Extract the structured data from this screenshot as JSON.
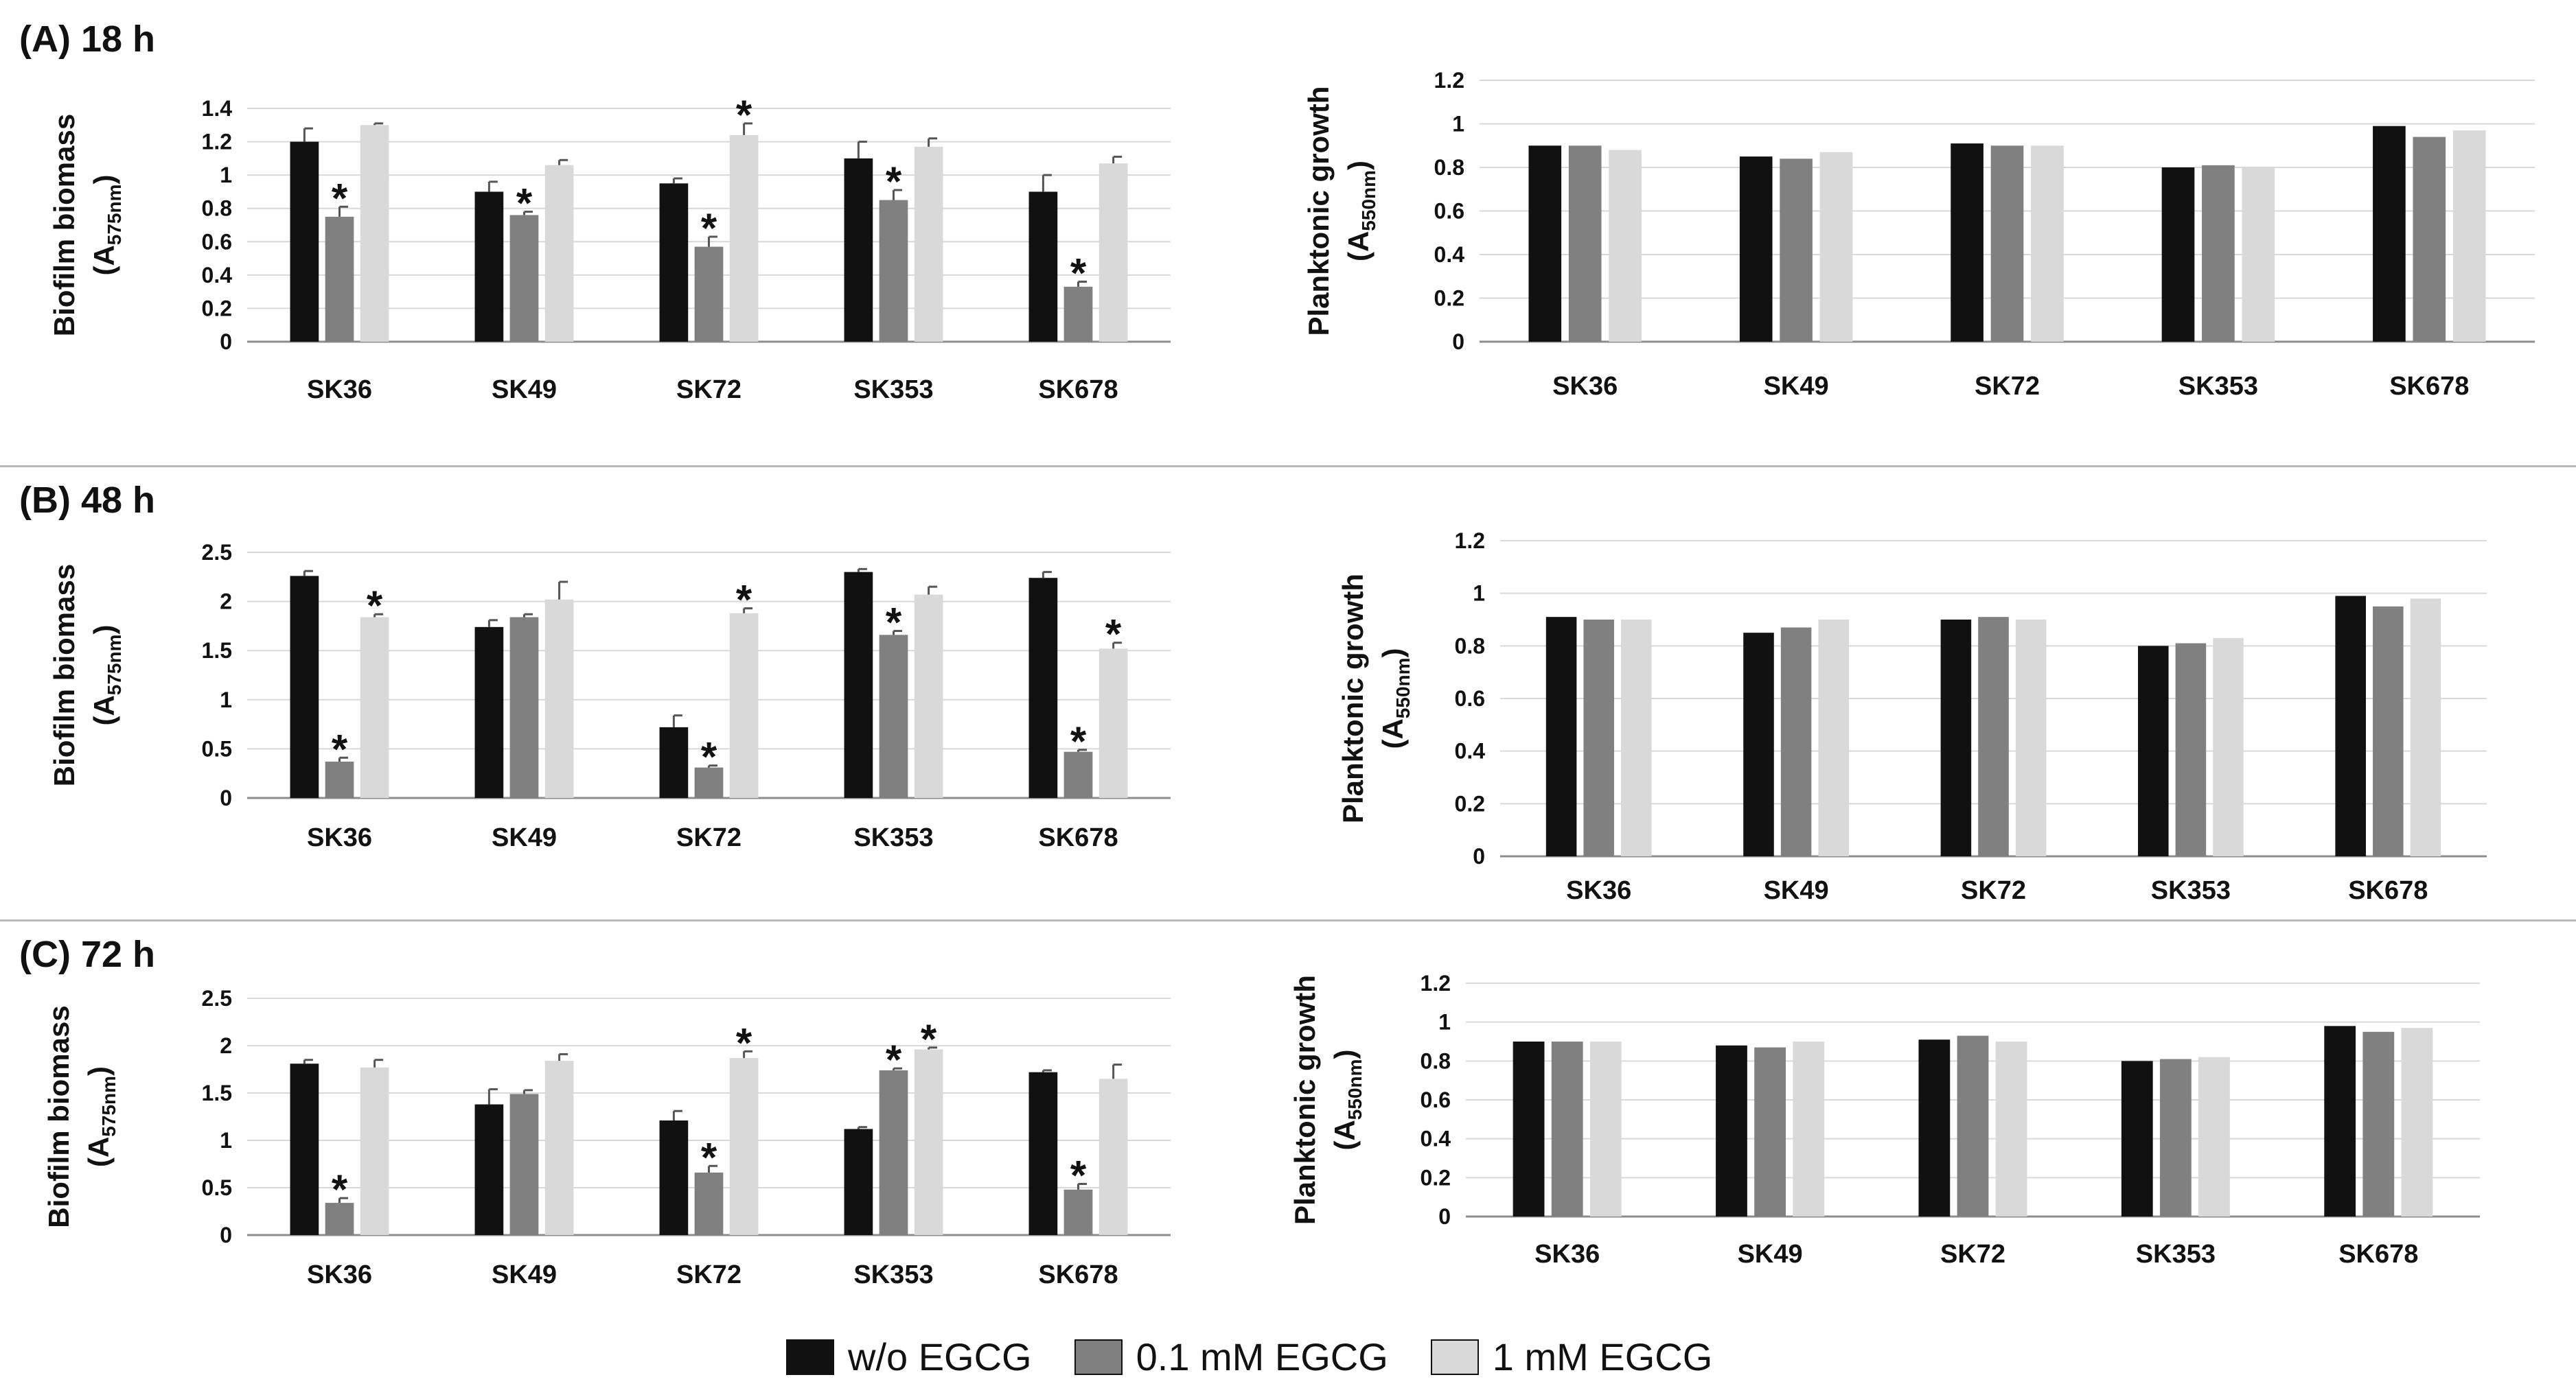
{
  "panels": [
    {
      "label": "(A) 18 h"
    },
    {
      "label": "(B) 48 h"
    },
    {
      "label": "(C) 72 h"
    }
  ],
  "legend": [
    {
      "label": "w/o EGCG",
      "color": "#111111"
    },
    {
      "label": "0.1 mM EGCG",
      "color": "#808080"
    },
    {
      "label": "1 mM EGCG",
      "color": "#d9d9d9"
    }
  ],
  "chart_data": [
    {
      "id": "A-biofilm",
      "panel": "(A) 18 h",
      "type": "bar",
      "ylabel_main": "Biofilm biomass",
      "ylabel_sub": "A",
      "ylabel_subscript": "575nm",
      "categories": [
        "SK36",
        "SK49",
        "SK72",
        "SK353",
        "SK678"
      ],
      "ylim": [
        0,
        1.4
      ],
      "yticks": [
        0,
        0.2,
        0.4,
        0.6,
        0.8,
        1,
        1.2,
        1.4
      ],
      "yticklabels": [
        "0",
        "0.2",
        "0.4",
        "0.6",
        "0.8",
        "1",
        "1.2",
        "1.4"
      ],
      "series": [
        {
          "name": "w/o EGCG",
          "values": [
            1.2,
            0.9,
            0.95,
            1.1,
            0.9
          ],
          "errors": [
            0.08,
            0.06,
            0.03,
            0.1,
            0.1
          ],
          "stars": [
            false,
            false,
            false,
            false,
            false
          ]
        },
        {
          "name": "0.1 mM EGCG",
          "values": [
            0.75,
            0.76,
            0.57,
            0.85,
            0.33
          ],
          "errors": [
            0.06,
            0.02,
            0.06,
            0.06,
            0.03
          ],
          "stars": [
            true,
            true,
            true,
            true,
            true
          ]
        },
        {
          "name": "1 mM EGCG",
          "values": [
            1.3,
            1.06,
            1.24,
            1.17,
            1.07
          ],
          "errors": [
            0.01,
            0.03,
            0.07,
            0.05,
            0.04
          ],
          "stars": [
            false,
            false,
            true,
            false,
            false
          ]
        }
      ],
      "star_symbol": "*"
    },
    {
      "id": "A-planktonic",
      "panel": "(A) 18 h",
      "type": "bar",
      "ylabel_main": "Planktonic growth",
      "ylabel_sub": "A",
      "ylabel_subscript": "550nm",
      "categories": [
        "SK36",
        "SK49",
        "SK72",
        "SK353",
        "SK678"
      ],
      "ylim": [
        0,
        1.2
      ],
      "yticks": [
        0,
        0.2,
        0.4,
        0.6,
        0.8,
        1,
        1.2
      ],
      "yticklabels": [
        "0",
        "0.2",
        "0.4",
        "0.6",
        "0.8",
        "1",
        "1.2"
      ],
      "series": [
        {
          "name": "w/o EGCG",
          "values": [
            0.9,
            0.85,
            0.91,
            0.8,
            0.99
          ]
        },
        {
          "name": "0.1 mM EGCG",
          "values": [
            0.9,
            0.84,
            0.9,
            0.81,
            0.94
          ]
        },
        {
          "name": "1 mM EGCG",
          "values": [
            0.88,
            0.87,
            0.9,
            0.8,
            0.97
          ]
        }
      ]
    },
    {
      "id": "B-biofilm",
      "panel": "(B) 48 h",
      "type": "bar",
      "ylabel_main": "Biofilm biomass",
      "ylabel_sub": "A",
      "ylabel_subscript": "575nm",
      "categories": [
        "SK36",
        "SK49",
        "SK72",
        "SK353",
        "SK678"
      ],
      "ylim": [
        0,
        2.5
      ],
      "yticks": [
        0,
        0.5,
        1,
        1.5,
        2,
        2.5
      ],
      "yticklabels": [
        "0",
        "0.5",
        "1",
        "1.5",
        "2",
        "2.5"
      ],
      "series": [
        {
          "name": "w/o EGCG",
          "values": [
            2.26,
            1.74,
            0.72,
            2.3,
            2.24
          ],
          "errors": [
            0.05,
            0.07,
            0.12,
            0.03,
            0.06
          ],
          "stars": [
            false,
            false,
            false,
            false,
            false
          ]
        },
        {
          "name": "0.1 mM EGCG",
          "values": [
            0.37,
            1.84,
            0.31,
            1.66,
            0.47
          ],
          "errors": [
            0.04,
            0.03,
            0.02,
            0.04,
            0.02
          ],
          "stars": [
            true,
            false,
            true,
            true,
            true
          ]
        },
        {
          "name": "1 mM EGCG",
          "values": [
            1.84,
            2.02,
            1.88,
            2.07,
            1.52
          ],
          "errors": [
            0.03,
            0.18,
            0.05,
            0.08,
            0.06
          ],
          "stars": [
            true,
            false,
            true,
            false,
            true
          ]
        }
      ],
      "star_symbol": "*"
    },
    {
      "id": "B-planktonic",
      "panel": "(B) 48 h",
      "type": "bar",
      "ylabel_main": "Planktonic growth",
      "ylabel_sub": "A",
      "ylabel_subscript": "550nm",
      "categories": [
        "SK36",
        "SK49",
        "SK72",
        "SK353",
        "SK678"
      ],
      "ylim": [
        0,
        1.2
      ],
      "yticks": [
        0,
        0.2,
        0.4,
        0.6,
        0.8,
        1,
        1.2
      ],
      "yticklabels": [
        "0",
        "0.2",
        "0.4",
        "0.6",
        "0.8",
        "1",
        "1.2"
      ],
      "series": [
        {
          "name": "w/o EGCG",
          "values": [
            0.91,
            0.85,
            0.9,
            0.8,
            0.99
          ]
        },
        {
          "name": "0.1 mM EGCG",
          "values": [
            0.9,
            0.87,
            0.91,
            0.81,
            0.95
          ]
        },
        {
          "name": "1 mM EGCG",
          "values": [
            0.9,
            0.9,
            0.9,
            0.83,
            0.98
          ]
        }
      ]
    },
    {
      "id": "C-biofilm",
      "panel": "(C) 72 h",
      "type": "bar",
      "ylabel_main": "Biofilm biomass",
      "ylabel_sub": "A",
      "ylabel_subscript": "575nm",
      "categories": [
        "SK36",
        "SK49",
        "SK72",
        "SK353",
        "SK678"
      ],
      "ylim": [
        0,
        2.5
      ],
      "yticks": [
        0,
        0.5,
        1,
        1.5,
        2,
        2.5
      ],
      "yticklabels": [
        "0",
        "0.5",
        "1",
        "1.5",
        "2",
        "2.5"
      ],
      "series": [
        {
          "name": "w/o EGCG",
          "values": [
            1.81,
            1.38,
            1.21,
            1.12,
            1.72
          ],
          "errors": [
            0.04,
            0.16,
            0.1,
            0.02,
            0.02
          ],
          "stars": [
            false,
            false,
            false,
            false,
            false
          ]
        },
        {
          "name": "0.1 mM EGCG",
          "values": [
            0.34,
            1.49,
            0.66,
            1.74,
            0.48
          ],
          "errors": [
            0.05,
            0.04,
            0.07,
            0.02,
            0.06
          ],
          "stars": [
            true,
            false,
            true,
            true,
            true
          ]
        },
        {
          "name": "1 mM EGCG",
          "values": [
            1.77,
            1.84,
            1.87,
            1.96,
            1.65
          ],
          "errors": [
            0.08,
            0.07,
            0.07,
            0.02,
            0.15
          ],
          "stars": [
            false,
            false,
            true,
            true,
            false
          ]
        }
      ],
      "star_symbol": "*"
    },
    {
      "id": "C-planktonic",
      "panel": "(C) 72 h",
      "type": "bar",
      "ylabel_main": "Planktonic growth",
      "ylabel_sub": "A",
      "ylabel_subscript": "550nm",
      "categories": [
        "SK36",
        "SK49",
        "SK72",
        "SK353",
        "SK678"
      ],
      "ylim": [
        0,
        1.2
      ],
      "yticks": [
        0,
        0.2,
        0.4,
        0.6,
        0.8,
        1,
        1.2
      ],
      "yticklabels": [
        "0",
        "0.2",
        "0.4",
        "0.6",
        "0.8",
        "1",
        "1.2"
      ],
      "series": [
        {
          "name": "w/o EGCG",
          "values": [
            0.9,
            0.88,
            0.91,
            0.8,
            0.98
          ]
        },
        {
          "name": "0.1 mM EGCG",
          "values": [
            0.9,
            0.87,
            0.93,
            0.81,
            0.95
          ]
        },
        {
          "name": "1 mM EGCG",
          "values": [
            0.9,
            0.9,
            0.9,
            0.82,
            0.97
          ]
        }
      ]
    }
  ]
}
